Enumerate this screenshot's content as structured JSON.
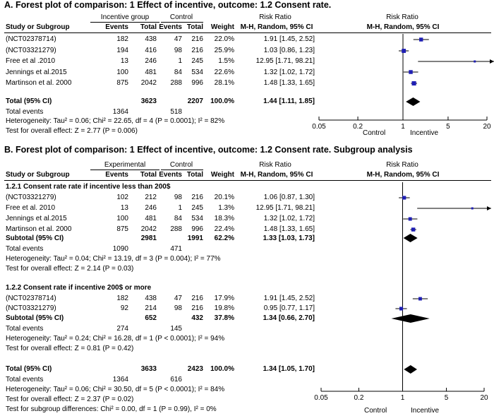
{
  "panelA": {
    "title": "A. Forest plot of comparison: 1 Effect of incentive, outcome: 1.2 Consent rate.",
    "headers": {
      "group1": "Incentive group",
      "group2": "Control",
      "rr": "Risk Ratio",
      "rr_plot": "Risk Ratio",
      "study": "Study or Subgroup",
      "events1": "Events",
      "total1": "Total",
      "events2": "Events",
      "total2": "Total",
      "weight": "Weight",
      "method": "M-H, Random, 95% CI",
      "method_plot": "M-H, Random, 95% CI"
    },
    "rows": [
      {
        "study": "(NCT02378714)",
        "e1": "182",
        "t1": "438",
        "e2": "47",
        "t2": "216",
        "w": "22.0%",
        "ci": "1.91 [1.45, 2.52]"
      },
      {
        "study": "(NCT03321279)",
        "e1": "194",
        "t1": "416",
        "e2": "98",
        "t2": "216",
        "w": "25.9%",
        "ci": "1.03 [0.86, 1.23]"
      },
      {
        "study": "Free et al .2010",
        "e1": "13",
        "t1": "246",
        "e2": "1",
        "t2": "245",
        "w": "1.5%",
        "ci": "12.95 [1.71, 98.21]"
      },
      {
        "study": "Jennings et al.2015",
        "e1": "100",
        "t1": "481",
        "e2": "84",
        "t2": "534",
        "w": "22.6%",
        "ci": "1.32 [1.02, 1.72]"
      },
      {
        "study": "Martinson et al. 2000",
        "e1": "875",
        "t1": "2042",
        "e2": "288",
        "t2": "996",
        "w": "28.1%",
        "ci": "1.48 [1.33, 1.65]"
      }
    ],
    "total": {
      "label": "Total (95% CI)",
      "t1": "3623",
      "t2": "2207",
      "w": "100.0%",
      "ci": "1.44 [1.11, 1.85]"
    },
    "total_events": {
      "label": "Total events",
      "e1": "1364",
      "e2": "518"
    },
    "heterogeneity": "Heterogeneity: Tau² = 0.06; Chi² = 22.65, df = 4 (P = 0.0001); I² = 82%",
    "overall": "Test for overall effect: Z = 2.77 (P = 0.006)",
    "axis": {
      "ticks": [
        "0.05",
        "0.2",
        "1",
        "5",
        "20"
      ],
      "left_label": "Control",
      "right_label": "Incentive"
    }
  },
  "panelB": {
    "title": "B. Forest plot of comparison: 1 Effect of incentive, outcome: 1.2 Consent rate. Subgroup analysis",
    "headers": {
      "group1": "Experimental",
      "group2": "Control",
      "rr": "Risk Ratio",
      "rr_plot": "Risk Ratio",
      "study": "Study or Subgroup",
      "events1": "Events",
      "total1": "Total",
      "events2": "Events",
      "total2": "Total",
      "weight": "Weight",
      "method": "M-H, Random, 95% CI",
      "method_plot": "M-H, Random, 95% CI"
    },
    "sub1": {
      "title": "1.2.1 Consent rate rate if incentive less than 200$",
      "rows": [
        {
          "study": "(NCT03321279)",
          "e1": "102",
          "t1": "212",
          "e2": "98",
          "t2": "216",
          "w": "20.1%",
          "ci": "1.06 [0.87, 1.30]"
        },
        {
          "study": "Free et al. 2010",
          "e1": "13",
          "t1": "246",
          "e2": "1",
          "t2": "245",
          "w": "1.3%",
          "ci": "12.95 [1.71, 98.21]"
        },
        {
          "study": "Jennings et al.2015",
          "e1": "100",
          "t1": "481",
          "e2": "84",
          "t2": "534",
          "w": "18.3%",
          "ci": "1.32 [1.02, 1.72]"
        },
        {
          "study": "Martinson et al. 2000",
          "e1": "875",
          "t1": "2042",
          "e2": "288",
          "t2": "996",
          "w": "22.4%",
          "ci": "1.48 [1.33, 1.65]"
        }
      ],
      "subtotal": {
        "label": "Subtotal (95% CI)",
        "t1": "2981",
        "t2": "1991",
        "w": "62.2%",
        "ci": "1.33 [1.03, 1.73]"
      },
      "total_events": {
        "label": "Total events",
        "e1": "1090",
        "e2": "471"
      },
      "heterogeneity": "Heterogeneity: Tau² = 0.04; Chi² = 13.19, df = 3 (P = 0.004); I² = 77%",
      "overall": "Test for overall effect: Z = 2.14 (P = 0.03)"
    },
    "sub2": {
      "title": "1.2.2 Consent rate if incentive 200$ or more",
      "rows": [
        {
          "study": "(NCT02378714)",
          "e1": "182",
          "t1": "438",
          "e2": "47",
          "t2": "216",
          "w": "17.9%",
          "ci": "1.91 [1.45, 2.52]"
        },
        {
          "study": "(NCT03321279)",
          "e1": "92",
          "t1": "214",
          "e2": "98",
          "t2": "216",
          "w": "19.8%",
          "ci": "0.95 [0.77, 1.17]"
        }
      ],
      "subtotal": {
        "label": "Subtotal (95% CI)",
        "t1": "652",
        "t2": "432",
        "w": "37.8%",
        "ci": "1.34 [0.66, 2.70]"
      },
      "total_events": {
        "label": "Total events",
        "e1": "274",
        "e2": "145"
      },
      "heterogeneity": "Heterogeneity: Tau² = 0.24; Chi² = 16.28, df = 1 (P < 0.0001); I² = 94%",
      "overall": "Test for overall effect: Z = 0.81 (P = 0.42)"
    },
    "total": {
      "label": "Total (95% CI)",
      "t1": "3633",
      "t2": "2423",
      "w": "100.0%",
      "ci": "1.34 [1.05, 1.70]"
    },
    "total_events": {
      "label": "Total events",
      "e1": "1364",
      "e2": "616"
    },
    "heterogeneity": "Heterogeneity: Tau² = 0.06; Chi² = 30.50, df = 5 (P < 0.0001); I² = 84%",
    "overall": "Test for overall effect: Z = 2.37 (P = 0.02)",
    "subgroup_diff": "Test for subgroup differences: Chi² = 0.00, df = 1 (P = 0.99), I² = 0%",
    "axis": {
      "ticks": [
        "0.05",
        "0.2",
        "1",
        "5",
        "20"
      ],
      "left_label": "Control",
      "right_label": "Incentive"
    }
  },
  "colors": {
    "marker": "#1f1fb4",
    "line": "#000000"
  },
  "chart_data": [
    {
      "type": "forest",
      "scale": "log",
      "xlim": [
        0.05,
        20
      ],
      "title": "A. Forest plot of comparison: 1 Effect of incentive, outcome: 1.2 Consent rate.",
      "studies": [
        {
          "name": "(NCT02378714)",
          "rr": 1.91,
          "lo": 1.45,
          "hi": 2.52,
          "weight": 22.0
        },
        {
          "name": "(NCT03321279)",
          "rr": 1.03,
          "lo": 0.86,
          "hi": 1.23,
          "weight": 25.9
        },
        {
          "name": "Free et al .2010",
          "rr": 12.95,
          "lo": 1.71,
          "hi": 98.21,
          "weight": 1.5
        },
        {
          "name": "Jennings et al.2015",
          "rr": 1.32,
          "lo": 1.02,
          "hi": 1.72,
          "weight": 22.6
        },
        {
          "name": "Martinson et al. 2000",
          "rr": 1.48,
          "lo": 1.33,
          "hi": 1.65,
          "weight": 28.1
        }
      ],
      "pooled": [
        {
          "name": "Total (95% CI)",
          "rr": 1.44,
          "lo": 1.11,
          "hi": 1.85
        }
      ]
    },
    {
      "type": "forest",
      "scale": "log",
      "xlim": [
        0.05,
        20
      ],
      "title": "B. Forest plot of comparison: 1 Effect of incentive, outcome: 1.2 Consent rate. Subgroup analysis",
      "studies": [
        {
          "name": "(NCT03321279)",
          "rr": 1.06,
          "lo": 0.87,
          "hi": 1.3,
          "weight": 20.1
        },
        {
          "name": "Free et al. 2010",
          "rr": 12.95,
          "lo": 1.71,
          "hi": 98.21,
          "weight": 1.3
        },
        {
          "name": "Jennings et al.2015",
          "rr": 1.32,
          "lo": 1.02,
          "hi": 1.72,
          "weight": 18.3
        },
        {
          "name": "Martinson et al. 2000",
          "rr": 1.48,
          "lo": 1.33,
          "hi": 1.65,
          "weight": 22.4
        },
        {
          "name": "(NCT02378714)",
          "rr": 1.91,
          "lo": 1.45,
          "hi": 2.52,
          "weight": 17.9
        },
        {
          "name": "(NCT03321279)",
          "rr": 0.95,
          "lo": 0.77,
          "hi": 1.17,
          "weight": 19.8
        }
      ],
      "pooled": [
        {
          "name": "Subtotal 1.2.1",
          "rr": 1.33,
          "lo": 1.03,
          "hi": 1.73
        },
        {
          "name": "Subtotal 1.2.2",
          "rr": 1.34,
          "lo": 0.66,
          "hi": 2.7
        },
        {
          "name": "Total (95% CI)",
          "rr": 1.34,
          "lo": 1.05,
          "hi": 1.7
        }
      ]
    }
  ]
}
